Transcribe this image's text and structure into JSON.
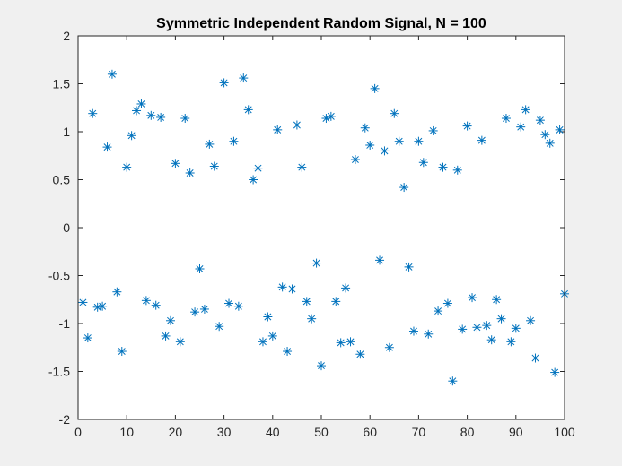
{
  "chart_data": {
    "type": "scatter",
    "title": "Symmetric Independent Random Signal, N = 100",
    "xlabel": "",
    "ylabel": "",
    "xlim": [
      0,
      100
    ],
    "ylim": [
      -2,
      2
    ],
    "xticks": [
      0,
      10,
      20,
      30,
      40,
      50,
      60,
      70,
      80,
      90,
      100
    ],
    "xtick_labels": [
      "0",
      "10",
      "20",
      "30",
      "40",
      "50",
      "60",
      "70",
      "80",
      "90",
      "100"
    ],
    "yticks": [
      -2,
      -1.5,
      -1,
      -0.5,
      0,
      0.5,
      1,
      1.5,
      2
    ],
    "ytick_labels": [
      "-2",
      "-1.5",
      "-1",
      "-0.5",
      "0",
      "0.5",
      "1",
      "1.5",
      "2"
    ],
    "grid": false,
    "marker": "asterisk",
    "colors": {
      "marker": "#0072bd",
      "axes_bg": "#ffffff",
      "figure_bg": "#f0f0f0",
      "axis_line": "#262626"
    },
    "x": [
      1,
      2,
      3,
      4,
      5,
      6,
      7,
      8,
      9,
      10,
      11,
      12,
      13,
      14,
      15,
      16,
      17,
      18,
      19,
      20,
      21,
      22,
      23,
      24,
      25,
      26,
      27,
      28,
      29,
      30,
      31,
      32,
      33,
      34,
      35,
      36,
      37,
      38,
      39,
      40,
      41,
      42,
      43,
      44,
      45,
      46,
      47,
      48,
      49,
      50,
      51,
      52,
      53,
      54,
      55,
      56,
      57,
      58,
      59,
      60,
      61,
      62,
      63,
      64,
      65,
      66,
      67,
      68,
      69,
      70,
      71,
      72,
      73,
      74,
      75,
      76,
      77,
      78,
      79,
      80,
      81,
      82,
      83,
      84,
      85,
      86,
      87,
      88,
      89,
      90,
      91,
      92,
      93,
      94,
      95,
      96,
      97,
      98,
      99,
      100
    ],
    "y": [
      -0.78,
      -1.15,
      1.19,
      -0.83,
      -0.82,
      0.84,
      1.6,
      -0.67,
      -1.29,
      0.63,
      0.96,
      1.22,
      1.29,
      -0.76,
      1.17,
      -0.81,
      1.15,
      -1.13,
      -0.97,
      0.67,
      -1.19,
      1.14,
      0.57,
      -0.88,
      -0.43,
      -0.85,
      0.87,
      0.64,
      -1.03,
      1.51,
      -0.79,
      0.9,
      -0.82,
      1.56,
      1.23,
      0.5,
      0.62,
      -1.19,
      -0.93,
      -1.13,
      1.02,
      -0.62,
      -1.29,
      -0.64,
      1.07,
      0.63,
      -0.77,
      -0.95,
      -0.37,
      -1.44,
      1.14,
      1.16,
      -0.77,
      -1.2,
      -0.63,
      -1.19,
      0.71,
      -1.32,
      1.04,
      0.86,
      1.45,
      -0.34,
      0.8,
      -1.25,
      1.19,
      0.9,
      0.42,
      -0.41,
      -1.08,
      0.9,
      0.68,
      -1.11,
      1.01,
      -0.87,
      0.63,
      -0.79,
      -1.6,
      0.6,
      -1.06,
      1.06,
      -0.73,
      -1.04,
      0.91,
      -1.02,
      -1.17,
      -0.75,
      -0.95,
      1.14,
      -1.19,
      -1.05,
      1.05,
      1.23,
      -0.97,
      -1.36,
      1.12,
      0.97,
      0.88,
      -1.51,
      1.02,
      -0.69
    ]
  }
}
